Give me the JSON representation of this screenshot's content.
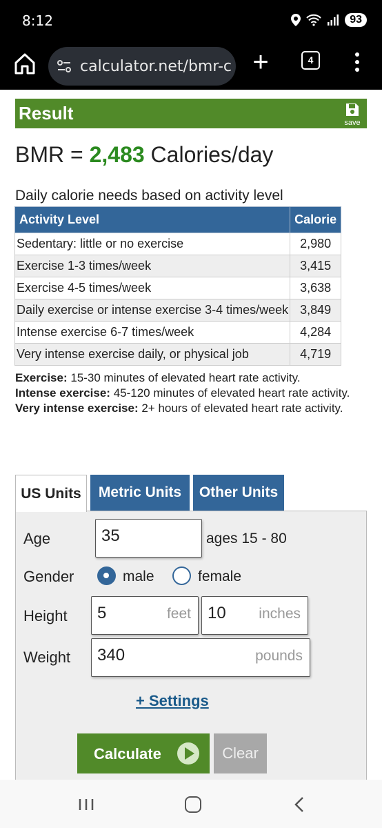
{
  "status": {
    "time": "8:12",
    "battery": "93"
  },
  "browser": {
    "url": "calculator.net/bmr-c",
    "tab_count": "4"
  },
  "result": {
    "title": "Result",
    "save_label": "save",
    "bmr_prefix": "BMR = ",
    "bmr_value": "2,483",
    "bmr_suffix": " Calories/day",
    "caption": "Daily calorie needs based on activity level"
  },
  "table": {
    "headers": [
      "Activity Level",
      "Calorie"
    ],
    "rows": [
      {
        "activity": "Sedentary: little or no exercise",
        "calorie": "2,980"
      },
      {
        "activity": "Exercise 1-3 times/week",
        "calorie": "3,415"
      },
      {
        "activity": "Exercise 4-5 times/week",
        "calorie": "3,638"
      },
      {
        "activity": "Daily exercise or intense exercise 3-4 times/week",
        "calorie": "3,849"
      },
      {
        "activity": "Intense exercise 6-7 times/week",
        "calorie": "4,284"
      },
      {
        "activity": "Very intense exercise daily, or physical job",
        "calorie": "4,719"
      }
    ]
  },
  "notes": [
    {
      "term": "Exercise:",
      "text": " 15-30 minutes of elevated heart rate activity."
    },
    {
      "term": "Intense exercise:",
      "text": " 45-120 minutes of elevated heart rate activity."
    },
    {
      "term": "Very intense exercise:",
      "text": " 2+ hours of elevated heart rate activity."
    }
  ],
  "tabs": [
    "US Units",
    "Metric Units",
    "Other Units"
  ],
  "form": {
    "age_label": "Age",
    "age_value": "35",
    "age_hint": "ages 15 - 80",
    "gender_label": "Gender",
    "gender_male": "male",
    "gender_female": "female",
    "gender_selected": "male",
    "height_label": "Height",
    "height_feet": "5",
    "height_feet_unit": "feet",
    "height_inches": "10",
    "height_inches_unit": "inches",
    "weight_label": "Weight",
    "weight_value": "340",
    "weight_unit": "pounds",
    "settings_link": "+ Settings",
    "calculate_label": "Calculate",
    "clear_label": "Clear"
  },
  "colors": {
    "result_green": "#518a29",
    "bmr_green": "#2b8a1f",
    "tab_blue": "#336699"
  }
}
